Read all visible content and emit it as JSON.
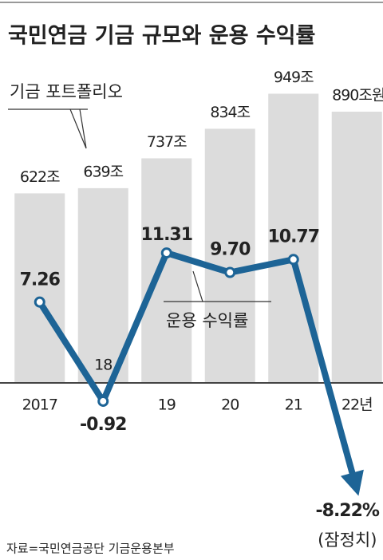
{
  "chart_data": {
    "type": "bar",
    "title": "국민연금 기금 규모와 운용 수익률",
    "categories": [
      "2017",
      "18",
      "19",
      "20",
      "21",
      "22년"
    ],
    "series": [
      {
        "name": "기금 포트폴리오",
        "type": "bar",
        "color": "#dcdcdc",
        "values": [
          622,
          639,
          737,
          834,
          949,
          890
        ],
        "value_labels": [
          "622조",
          "639조",
          "737조",
          "834조",
          "949조",
          "890조원"
        ]
      },
      {
        "name": "운용 수익률",
        "type": "line",
        "axis": "y2",
        "color": "#1d6496",
        "values": [
          7.26,
          -0.92,
          11.31,
          9.7,
          10.77,
          -8.22
        ],
        "value_labels": [
          "7.26",
          "-0.92",
          "11.31",
          "9.70",
          "10.77",
          "-8.22%"
        ]
      }
    ],
    "ylim": [
      0,
      1000
    ],
    "y2lim": [
      -10,
      15
    ],
    "annotation": "(잠정치)",
    "source": "자료=국민연금공단 기금운용본부"
  }
}
